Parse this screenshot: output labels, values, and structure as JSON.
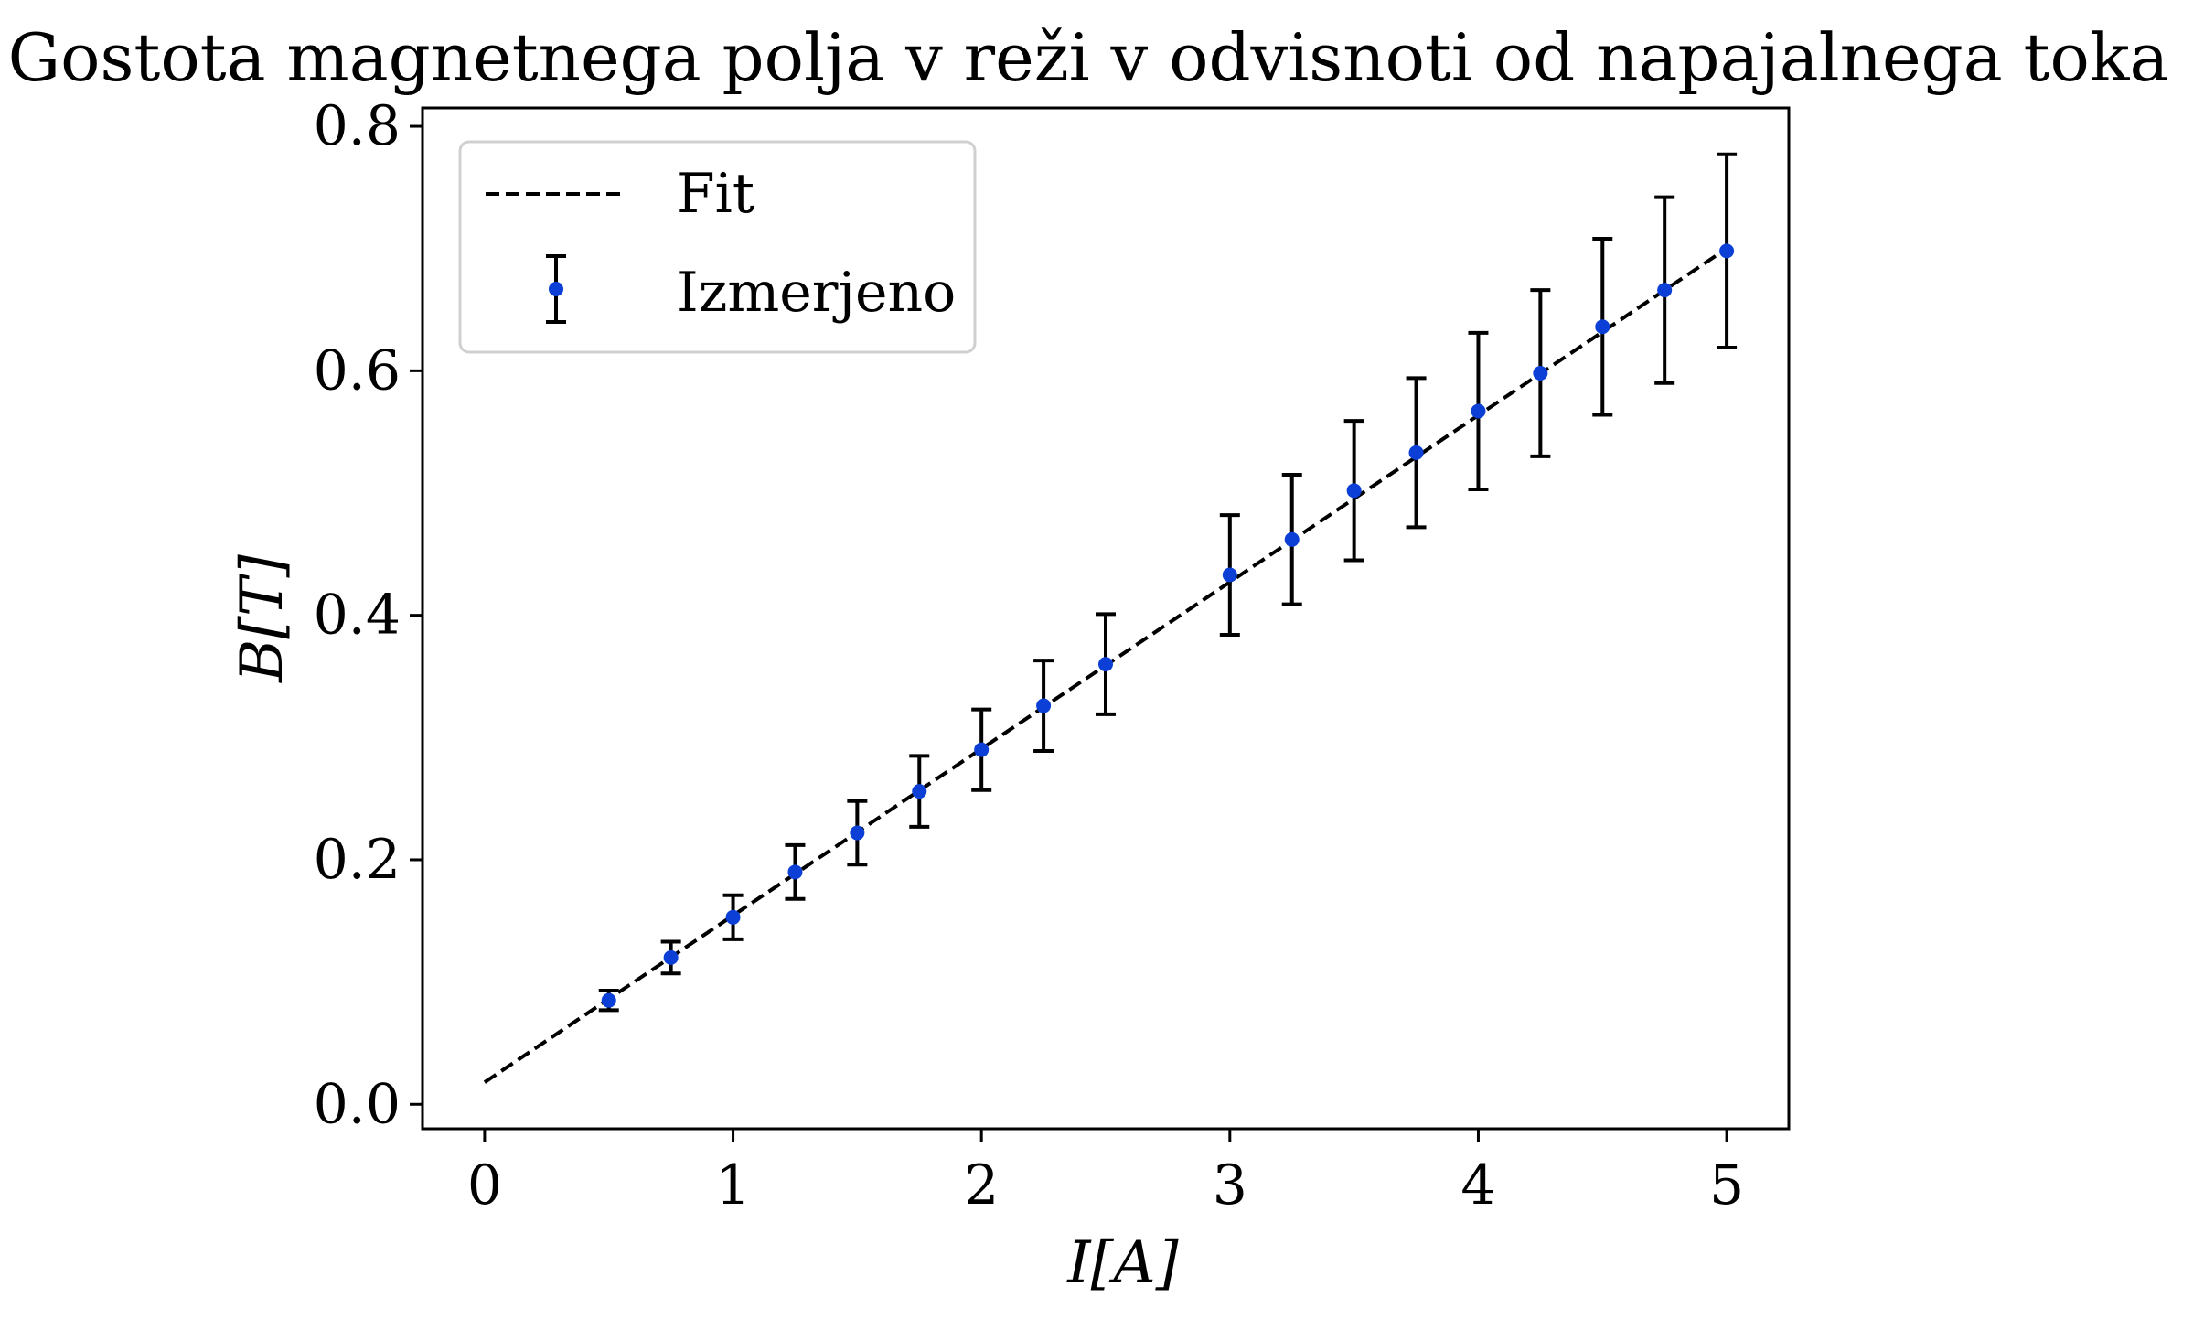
{
  "chart_data": {
    "type": "scatter",
    "title": "Gostota magnetnega polja v reži v odvisnoti od napajalnega toka",
    "xlabel": "I[A]",
    "ylabel": "B[T]",
    "xlim": [
      -0.25,
      5.25
    ],
    "ylim": [
      -0.02,
      0.815
    ],
    "xticks": [
      0,
      1,
      2,
      3,
      4,
      5
    ],
    "xtick_labels": [
      "0",
      "1",
      "2",
      "3",
      "4",
      "5"
    ],
    "yticks": [
      0.0,
      0.2,
      0.4,
      0.6,
      0.8
    ],
    "ytick_labels": [
      "0.0",
      "0.2",
      "0.4",
      "0.6",
      "0.8"
    ],
    "grid": false,
    "legend_position": "top-left",
    "series": [
      {
        "name": "Fit",
        "kind": "line",
        "style": "dashed",
        "color": "#000000",
        "x": [
          0,
          5
        ],
        "y": [
          0.018,
          0.7
        ]
      },
      {
        "name": "Izmerjeno",
        "kind": "errorbar",
        "color": "#0b3fd6",
        "errorbar_color": "#000000",
        "x": [
          0.5,
          0.75,
          1.0,
          1.25,
          1.5,
          1.75,
          2.0,
          2.25,
          2.5,
          3.0,
          3.25,
          3.5,
          3.75,
          4.0,
          4.25,
          4.5,
          4.75,
          5.0
        ],
        "y": [
          0.085,
          0.12,
          0.153,
          0.19,
          0.222,
          0.256,
          0.29,
          0.326,
          0.36,
          0.433,
          0.462,
          0.502,
          0.533,
          0.567,
          0.598,
          0.636,
          0.666,
          0.698
        ],
        "yerr": [
          0.008,
          0.013,
          0.018,
          0.022,
          0.026,
          0.029,
          0.033,
          0.037,
          0.041,
          0.049,
          0.053,
          0.057,
          0.061,
          0.064,
          0.068,
          0.072,
          0.076,
          0.079
        ]
      }
    ]
  }
}
